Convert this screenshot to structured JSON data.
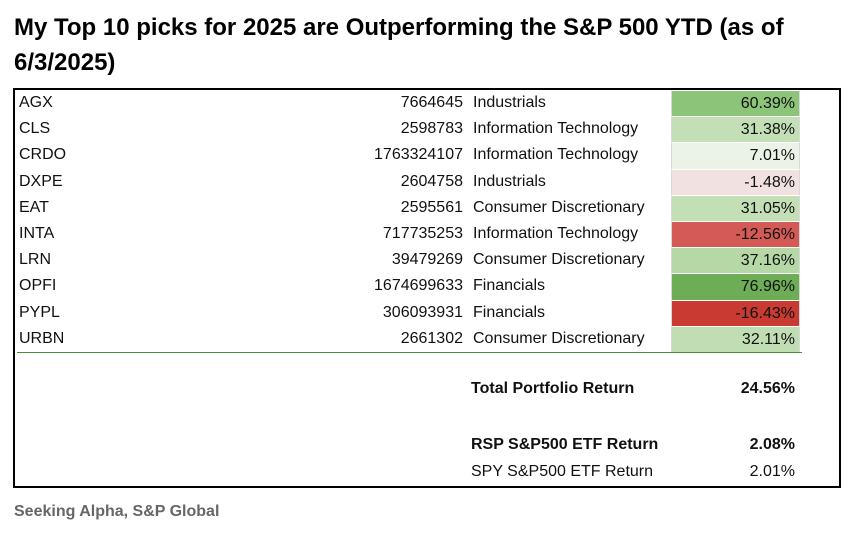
{
  "title": "My Top 10 picks for 2025 are Outperforming the S&P 500 YTD (as of 6/3/2025)",
  "source": "Seeking Alpha, S&P Global",
  "chart_data": {
    "type": "table",
    "rows": [
      {
        "ticker": "AGX",
        "value": "7664645",
        "sector": "Industrials",
        "return": "60.39%",
        "return_value": 60.39,
        "color": "#8cc47a"
      },
      {
        "ticker": "CLS",
        "value": "2598783",
        "sector": "Information Technology",
        "return": "31.38%",
        "return_value": 31.38,
        "color": "#c3dfb6"
      },
      {
        "ticker": "CRDO",
        "value": "1763324107",
        "sector": "Information Technology",
        "return": "7.01%",
        "return_value": 7.01,
        "color": "#eaf3e6"
      },
      {
        "ticker": "DXPE",
        "value": "2604758",
        "sector": "Industrials",
        "return": "-1.48%",
        "return_value": -1.48,
        "color": "#f2e1e1"
      },
      {
        "ticker": "EAT",
        "value": "2595561",
        "sector": "Consumer Discretionary",
        "return": "31.05%",
        "return_value": 31.05,
        "color": "#c3dfb6"
      },
      {
        "ticker": "INTA",
        "value": "717735253",
        "sector": "Information Technology",
        "return": "-12.56%",
        "return_value": -12.56,
        "color": "#d45a55"
      },
      {
        "ticker": "LRN",
        "value": "39479269",
        "sector": "Consumer Discretionary",
        "return": "37.16%",
        "return_value": 37.16,
        "color": "#b5d8a6"
      },
      {
        "ticker": "OPFI",
        "value": "1674699633",
        "sector": "Financials",
        "return": "76.96%",
        "return_value": 76.96,
        "color": "#6cad55"
      },
      {
        "ticker": "PYPL",
        "value": "306093931",
        "sector": "Financials",
        "return": "-16.43%",
        "return_value": -16.43,
        "color": "#c83a32"
      },
      {
        "ticker": "URBN",
        "value": "2661302",
        "sector": "Consumer Discretionary",
        "return": "32.11%",
        "return_value": 32.11,
        "color": "#c0ddb3"
      }
    ],
    "summary": [
      {
        "label": "Total Portfolio Return",
        "value": "24.56%",
        "bold": true
      },
      {
        "label": "RSP S&P500 ETF Return",
        "value": "2.08%",
        "bold": true
      },
      {
        "label": "SPY S&P500 ETF Return",
        "value": "2.01%",
        "bold": false
      }
    ]
  }
}
